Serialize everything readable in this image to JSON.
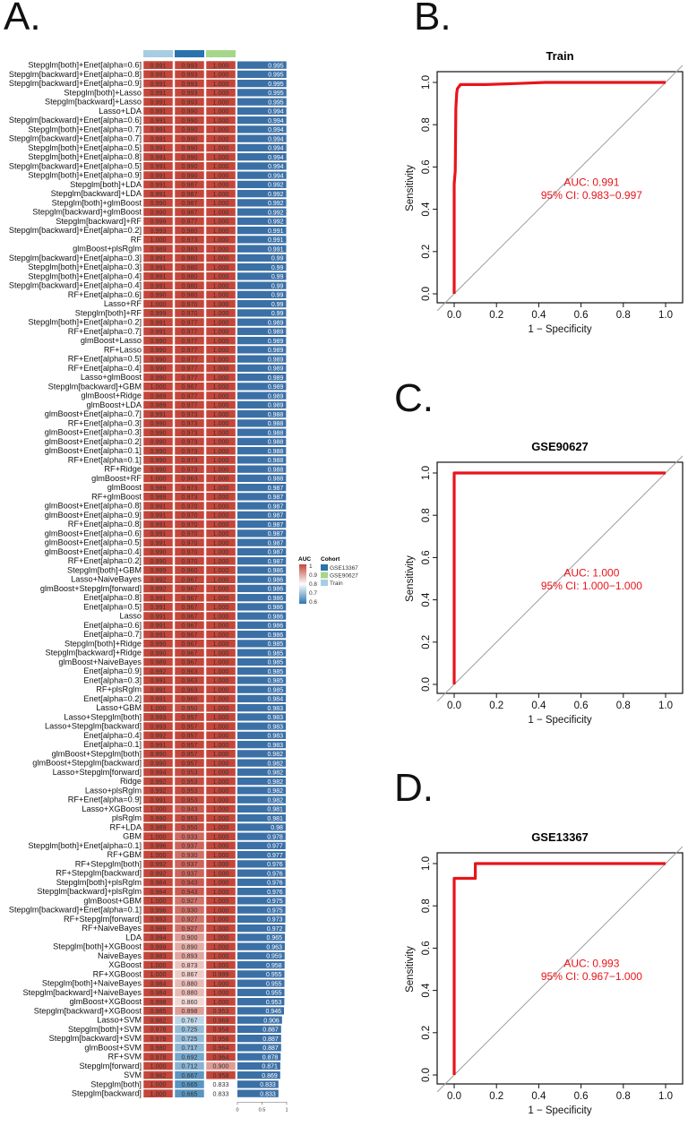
{
  "panels": {
    "A": "A.",
    "B": "B.",
    "C": "C.",
    "D": "D."
  },
  "colors": {
    "high": "#c4463a",
    "mid": "#ffffff",
    "low": "#2e78b0",
    "bar": "#3b70a6",
    "GSE13367": "#2a73ad",
    "GSE90627": "#a6d68a",
    "Train": "#a6cde2",
    "roc": "#e8141a",
    "diag": "#a0a0a0"
  },
  "heatmap": {
    "columns": [
      "Train",
      "GSE13367",
      "GSE90627"
    ],
    "bar_axis_ticks": [
      "0",
      "0.5",
      "1"
    ],
    "legend": {
      "auc_title": "AUC",
      "auc_ticks": [
        "1",
        "0.9",
        "0.8",
        "0.7",
        "0.6"
      ],
      "cohort_title": "Cohort",
      "cohorts": [
        "GSE13367",
        "GSE90627",
        "Train"
      ]
    },
    "rows": [
      [
        "Stepglm[both]+Enet[alpha=0.6]",
        0.991,
        0.993,
        1.0,
        "0.995"
      ],
      [
        "Stepglm[backward]+Enet[alpha=0.8]",
        0.991,
        0.993,
        1.0,
        "0.995"
      ],
      [
        "Stepglm[backward]+Enet[alpha=0.9]",
        0.991,
        0.993,
        1.0,
        "0.995"
      ],
      [
        "Stepglm[both]+Lasso",
        0.991,
        0.993,
        1.0,
        "0.995"
      ],
      [
        "Stepglm[backward]+Lasso",
        0.991,
        0.993,
        1.0,
        "0.995"
      ],
      [
        "Lasso+LDA",
        0.991,
        0.99,
        1.0,
        "0.994"
      ],
      [
        "Stepglm[backward]+Enet[alpha=0.6]",
        0.991,
        0.99,
        1.0,
        "0.994"
      ],
      [
        "Stepglm[both]+Enet[alpha=0.7]",
        0.991,
        0.99,
        1.0,
        "0.994"
      ],
      [
        "Stepglm[backward]+Enet[alpha=0.7]",
        0.991,
        0.99,
        1.0,
        "0.994"
      ],
      [
        "Stepglm[both]+Enet[alpha=0.5]",
        0.991,
        0.99,
        1.0,
        "0.994"
      ],
      [
        "Stepglm[both]+Enet[alpha=0.8]",
        0.991,
        0.99,
        1.0,
        "0.994"
      ],
      [
        "Stepglm[backward]+Enet[alpha=0.5]",
        0.991,
        0.99,
        1.0,
        "0.994"
      ],
      [
        "Stepglm[both]+Enet[alpha=0.9]",
        0.991,
        0.99,
        1.0,
        "0.994"
      ],
      [
        "Stepglm[both]+LDA",
        0.991,
        0.987,
        1.0,
        "0.992"
      ],
      [
        "Stepglm[backward]+LDA",
        0.991,
        0.987,
        1.0,
        "0.992"
      ],
      [
        "Stepglm[both]+glmBoost",
        0.99,
        0.987,
        1.0,
        "0.992"
      ],
      [
        "Stepglm[backward]+glmBoost",
        0.99,
        0.987,
        1.0,
        "0.992"
      ],
      [
        "Stepglm[backward]+RF",
        0.999,
        0.977,
        1.0,
        "0.992"
      ],
      [
        "Stepglm[backward]+Enet[alpha=0.2]",
        0.993,
        0.98,
        1.0,
        "0.991"
      ],
      [
        "RF",
        1.0,
        0.973,
        1.0,
        "0.991"
      ],
      [
        "glmBoost+plsRglm",
        0.989,
        0.983,
        1.0,
        "0.991"
      ],
      [
        "Stepglm[backward]+Enet[alpha=0.3]",
        0.991,
        0.98,
        1.0,
        "0.99"
      ],
      [
        "Stepglm[both]+Enet[alpha=0.3]",
        0.991,
        0.98,
        1.0,
        "0.99"
      ],
      [
        "Stepglm[both]+Enet[alpha=0.4]",
        0.991,
        0.98,
        1.0,
        "0.99"
      ],
      [
        "Stepglm[backward]+Enet[alpha=0.4]",
        0.991,
        0.98,
        1.0,
        "0.99"
      ],
      [
        "RF+Enet[alpha=0.6]",
        0.99,
        0.98,
        1.0,
        "0.99"
      ],
      [
        "Lasso+RF",
        1.0,
        0.97,
        1.0,
        "0.99"
      ],
      [
        "Stepglm[both]+RF",
        0.999,
        0.97,
        1.0,
        "0.99"
      ],
      [
        "Stepglm[both]+Enet[alpha=0.2]",
        0.991,
        0.977,
        1.0,
        "0.989"
      ],
      [
        "RF+Enet[alpha=0.7]",
        0.991,
        0.977,
        1.0,
        "0.989"
      ],
      [
        "glmBoost+Lasso",
        0.99,
        0.977,
        1.0,
        "0.989"
      ],
      [
        "RF+Lasso",
        0.99,
        0.977,
        1.0,
        "0.989"
      ],
      [
        "RF+Enet[alpha=0.5]",
        0.99,
        0.977,
        1.0,
        "0.989"
      ],
      [
        "RF+Enet[alpha=0.4]",
        0.99,
        0.977,
        1.0,
        "0.989"
      ],
      [
        "Lasso+glmBoost",
        0.99,
        0.977,
        1.0,
        "0.989"
      ],
      [
        "Stepglm[backward]+GBM",
        1.0,
        0.967,
        1.0,
        "0.989"
      ],
      [
        "glmBoost+Ridge",
        0.989,
        0.977,
        1.0,
        "0.989"
      ],
      [
        "glmBoost+LDA",
        0.989,
        0.977,
        1.0,
        "0.989"
      ],
      [
        "glmBoost+Enet[alpha=0.7]",
        0.991,
        0.973,
        1.0,
        "0.988"
      ],
      [
        "RF+Enet[alpha=0.3]",
        0.99,
        0.973,
        1.0,
        "0.988"
      ],
      [
        "glmBoost+Enet[alpha=0.3]",
        0.99,
        0.973,
        1.0,
        "0.988"
      ],
      [
        "glmBoost+Enet[alpha=0.2]",
        0.99,
        0.973,
        1.0,
        "0.988"
      ],
      [
        "glmBoost+Enet[alpha=0.1]",
        0.99,
        0.973,
        1.0,
        "0.988"
      ],
      [
        "RF+Enet[alpha=0.1]",
        0.99,
        0.973,
        1.0,
        "0.988"
      ],
      [
        "RF+Ridge",
        0.99,
        0.973,
        1.0,
        "0.988"
      ],
      [
        "glmBoost+RF",
        1.0,
        0.963,
        1.0,
        "0.988"
      ],
      [
        "glmBoost",
        0.989,
        0.973,
        1.0,
        "0.987"
      ],
      [
        "RF+glmBoost",
        0.989,
        0.973,
        1.0,
        "0.987"
      ],
      [
        "glmBoost+Enet[alpha=0.8]",
        0.991,
        0.97,
        1.0,
        "0.987"
      ],
      [
        "glmBoost+Enet[alpha=0.9]",
        0.991,
        0.97,
        1.0,
        "0.987"
      ],
      [
        "RF+Enet[alpha=0.8]",
        0.991,
        0.97,
        1.0,
        "0.987"
      ],
      [
        "glmBoost+Enet[alpha=0.6]",
        0.991,
        0.97,
        1.0,
        "0.987"
      ],
      [
        "glmBoost+Enet[alpha=0.5]",
        0.991,
        0.97,
        1.0,
        "0.987"
      ],
      [
        "glmBoost+Enet[alpha=0.4]",
        0.99,
        0.97,
        1.0,
        "0.987"
      ],
      [
        "RF+Enet[alpha=0.2]",
        0.99,
        0.97,
        1.0,
        "0.987"
      ],
      [
        "Stepglm[both]+GBM",
        0.999,
        0.96,
        1.0,
        "0.986"
      ],
      [
        "Lasso+NaiveBayes",
        0.992,
        0.967,
        1.0,
        "0.986"
      ],
      [
        "glmBoost+Stepglm[forward]",
        0.992,
        0.967,
        1.0,
        "0.986"
      ],
      [
        "Enet[alpha=0.8]",
        0.991,
        0.967,
        1.0,
        "0.986"
      ],
      [
        "Enet[alpha=0.5]",
        0.991,
        0.967,
        1.0,
        "0.986"
      ],
      [
        "Lasso",
        0.991,
        0.967,
        1.0,
        "0.986"
      ],
      [
        "Enet[alpha=0.6]",
        0.991,
        0.967,
        1.0,
        "0.986"
      ],
      [
        "Enet[alpha=0.7]",
        0.991,
        0.967,
        1.0,
        "0.986"
      ],
      [
        "Stepglm[both]+Ridge",
        0.99,
        0.967,
        1.0,
        "0.985"
      ],
      [
        "Stepglm[backward]+Ridge",
        0.99,
        0.967,
        1.0,
        "0.985"
      ],
      [
        "glmBoost+NaiveBayes",
        0.989,
        0.967,
        1.0,
        "0.985"
      ],
      [
        "Enet[alpha=0.9]",
        0.992,
        0.963,
        1.0,
        "0.985"
      ],
      [
        "Enet[alpha=0.3]",
        0.991,
        0.963,
        1.0,
        "0.985"
      ],
      [
        "RF+plsRglm",
        0.991,
        0.963,
        1.0,
        "0.985"
      ],
      [
        "Enet[alpha=0.2]",
        0.991,
        0.96,
        1.0,
        "0.984"
      ],
      [
        "Lasso+GBM",
        1.0,
        0.95,
        1.0,
        "0.983"
      ],
      [
        "Lasso+Stepglm[both]",
        0.993,
        0.957,
        1.0,
        "0.983"
      ],
      [
        "Lasso+Stepglm[backward]",
        0.993,
        0.957,
        1.0,
        "0.983"
      ],
      [
        "Enet[alpha=0.4]",
        0.992,
        0.957,
        1.0,
        "0.983"
      ],
      [
        "Enet[alpha=0.1]",
        0.991,
        0.957,
        1.0,
        "0.983"
      ],
      [
        "glmBoost+Stepglm[both]",
        0.99,
        0.957,
        1.0,
        "0.982"
      ],
      [
        "glmBoost+Stepglm[backward]",
        0.99,
        0.957,
        1.0,
        "0.982"
      ],
      [
        "Lasso+Stepglm[forward]",
        0.994,
        0.953,
        1.0,
        "0.982"
      ],
      [
        "Ridge",
        0.992,
        0.953,
        1.0,
        "0.982"
      ],
      [
        "Lasso+plsRglm",
        0.992,
        0.953,
        1.0,
        "0.982"
      ],
      [
        "RF+Enet[alpha=0.9]",
        0.991,
        0.953,
        1.0,
        "0.982"
      ],
      [
        "Lasso+XGBoost",
        1.0,
        0.943,
        1.0,
        "0.981"
      ],
      [
        "plsRglm",
        0.99,
        0.953,
        1.0,
        "0.981"
      ],
      [
        "RF+LDA",
        0.989,
        0.95,
        1.0,
        "0.98"
      ],
      [
        "GBM",
        1.0,
        0.933,
        1.0,
        "0.978"
      ],
      [
        "Stepglm[both]+Enet[alpha=0.1]",
        0.996,
        0.937,
        1.0,
        "0.977"
      ],
      [
        "RF+GBM",
        1.0,
        0.93,
        1.0,
        "0.977"
      ],
      [
        "RF+Stepglm[both]",
        0.992,
        0.937,
        1.0,
        "0.976"
      ],
      [
        "RF+Stepglm[backward]",
        0.992,
        0.937,
        1.0,
        "0.976"
      ],
      [
        "Stepglm[both]+plsRglm",
        0.984,
        0.943,
        1.0,
        "0.976"
      ],
      [
        "Stepglm[backward]+plsRglm",
        0.984,
        0.943,
        1.0,
        "0.976"
      ],
      [
        "glmBoost+GBM",
        1.0,
        0.927,
        1.0,
        "0.975"
      ],
      [
        "Stepglm[backward]+Enet[alpha=0.1]",
        0.996,
        0.93,
        1.0,
        "0.975"
      ],
      [
        "RF+Stepglm[forward]",
        0.993,
        0.927,
        1.0,
        "0.973"
      ],
      [
        "RF+NaiveBayes",
        0.989,
        0.927,
        1.0,
        "0.972"
      ],
      [
        "LDA",
        0.994,
        0.9,
        1.0,
        "0.965"
      ],
      [
        "Stepglm[both]+XGBoost",
        0.999,
        0.89,
        1.0,
        "0.963"
      ],
      [
        "NaiveBayes",
        0.983,
        0.893,
        1.0,
        "0.959"
      ],
      [
        "XGBoost",
        1.0,
        0.873,
        1.0,
        "0.958"
      ],
      [
        "RF+XGBoost",
        1.0,
        0.867,
        0.999,
        "0.955"
      ],
      [
        "Stepglm[both]+NaiveBayes",
        0.984,
        0.88,
        1.0,
        "0.955"
      ],
      [
        "Stepglm[backward]+NaiveBayes",
        0.984,
        0.88,
        1.0,
        "0.955"
      ],
      [
        "glmBoost+XGBoost",
        0.998,
        0.86,
        1.0,
        "0.953"
      ],
      [
        "Stepglm[backward]+XGBoost",
        0.985,
        0.898,
        0.953,
        "0.946"
      ],
      [
        "Lasso+SVM",
        0.982,
        0.767,
        0.969,
        "0.906"
      ],
      [
        "Stepglm[both]+SVM",
        0.978,
        0.725,
        0.958,
        "0.887"
      ],
      [
        "Stepglm[backward]+SVM",
        0.978,
        0.725,
        0.958,
        "0.887"
      ],
      [
        "glmBoost+SVM",
        0.98,
        0.717,
        0.964,
        "0.887"
      ],
      [
        "RF+SVM",
        0.978,
        0.692,
        0.964,
        "0.878"
      ],
      [
        "Stepglm[forward]",
        1.0,
        0.712,
        0.9,
        "0.871"
      ],
      [
        "SVM",
        0.982,
        0.667,
        0.958,
        "0.869"
      ],
      [
        "Stepglm[both]",
        1.0,
        0.665,
        0.833,
        "0.833"
      ],
      [
        "Stepglm[backward]",
        1.0,
        0.665,
        0.833,
        "0.833"
      ]
    ]
  },
  "chart_data": [
    {
      "type": "line",
      "title": "Train",
      "xlabel": "1 − Specificity",
      "ylabel": "Sensitivity",
      "xlim": [
        0,
        1
      ],
      "ylim": [
        0,
        1
      ],
      "ticks": [
        "0.0",
        "0.2",
        "0.4",
        "0.6",
        "0.8",
        "1.0"
      ],
      "auc_text": "AUC: 0.991",
      "ci_text": "95% CI: 0.983−0.997",
      "x": [
        0,
        0,
        0.005,
        0.008,
        0.012,
        0.015,
        0.03,
        0.15,
        0.3,
        0.43,
        1
      ],
      "y": [
        0,
        0.52,
        0.58,
        0.88,
        0.95,
        0.97,
        0.99,
        0.99,
        0.995,
        1,
        1
      ]
    },
    {
      "type": "line",
      "title": "GSE90627",
      "xlabel": "1 − Specificity",
      "ylabel": "Sensitivity",
      "xlim": [
        0,
        1
      ],
      "ylim": [
        0,
        1
      ],
      "ticks": [
        "0.0",
        "0.2",
        "0.4",
        "0.6",
        "0.8",
        "1.0"
      ],
      "auc_text": "AUC: 1.000",
      "ci_text": "95% CI: 1.000−1.000",
      "x": [
        0,
        0,
        1
      ],
      "y": [
        0,
        1,
        1
      ]
    },
    {
      "type": "line",
      "title": "GSE13367",
      "xlabel": "1 − Specificity",
      "ylabel": "Sensitivity",
      "xlim": [
        0,
        1
      ],
      "ylim": [
        0,
        1
      ],
      "ticks": [
        "0.0",
        "0.2",
        "0.4",
        "0.6",
        "0.8",
        "1.0"
      ],
      "auc_text": "AUC: 0.993",
      "ci_text": "95% CI: 0.967−1.000",
      "x": [
        0,
        0,
        0.1,
        0.1,
        1
      ],
      "y": [
        0,
        0.93,
        0.93,
        1,
        1
      ]
    }
  ]
}
